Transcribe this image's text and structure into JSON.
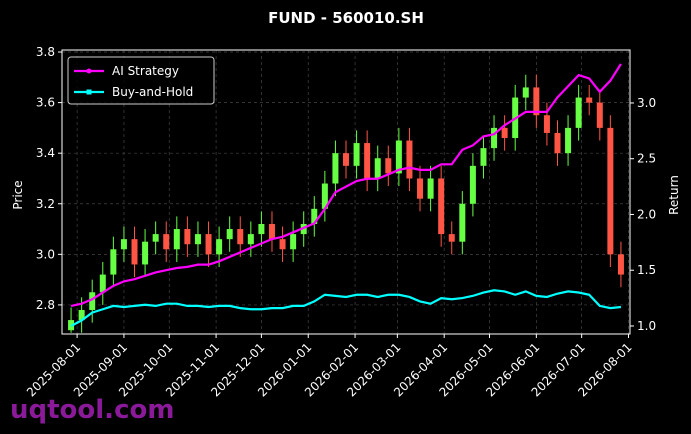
{
  "chart_data": {
    "type": "candlestick",
    "title": "FUND - 560010.SH",
    "y_label": "Price",
    "y2_label": "Return",
    "watermark": "uqtool.com",
    "grid": true,
    "legend": "upper left",
    "up_color": "#66ff44",
    "down_color": "#ff5544",
    "xlim": [
      "2025-07-22",
      "2026-08-02"
    ],
    "xticks": [
      "2025-08-01",
      "2025-09-01",
      "2025-10-01",
      "2025-11-01",
      "2025-12-01",
      "2026-01-01",
      "2026-02-01",
      "2026-03-01",
      "2026-04-01",
      "2026-05-01",
      "2026-06-01",
      "2026-07-01",
      "2026-08-01"
    ],
    "ylim": [
      2.685,
      3.808
    ],
    "yticks": [
      2.8,
      {
        "value": 3.0,
        "label": "3.0"
      },
      3.2,
      3.4,
      3.6,
      3.8
    ],
    "y2lim": [
      0.928,
      3.475
    ],
    "y2ticks": [
      {
        "value": 1.0,
        "label": "1.0"
      },
      1.5,
      {
        "value": 2.0,
        "label": "2.0"
      },
      2.5,
      {
        "value": 3.0,
        "label": "3.0"
      }
    ],
    "x": [
      "2025-07-28",
      "2025-08-04",
      "2025-08-11",
      "2025-08-18",
      "2025-08-25",
      "2025-09-01",
      "2025-09-08",
      "2025-09-15",
      "2025-09-22",
      "2025-09-29",
      "2025-10-06",
      "2025-10-13",
      "2025-10-20",
      "2025-10-27",
      "2025-11-03",
      "2025-11-10",
      "2025-11-17",
      "2025-11-24",
      "2025-12-01",
      "2025-12-08",
      "2025-12-15",
      "2025-12-22",
      "2025-12-29",
      "2026-01-05",
      "2026-01-12",
      "2026-01-19",
      "2026-01-26",
      "2026-02-02",
      "2026-02-09",
      "2026-02-16",
      "2026-02-23",
      "2026-03-02",
      "2026-03-09",
      "2026-03-16",
      "2026-03-23",
      "2026-03-30",
      "2026-04-06",
      "2026-04-13",
      "2026-04-20",
      "2026-04-27",
      "2026-05-04",
      "2026-05-11",
      "2026-05-18",
      "2026-05-25",
      "2026-06-01",
      "2026-06-08",
      "2026-06-15",
      "2026-06-22",
      "2026-06-29",
      "2026-07-06",
      "2026-07-13",
      "2026-07-20",
      "2026-07-27"
    ],
    "open": [
      2.7,
      2.74,
      2.78,
      2.85,
      2.92,
      3.02,
      3.06,
      2.96,
      3.05,
      3.08,
      3.02,
      3.1,
      3.04,
      3.08,
      3.0,
      3.06,
      3.1,
      3.04,
      3.08,
      3.12,
      3.06,
      3.02,
      3.08,
      3.12,
      3.18,
      3.28,
      3.4,
      3.35,
      3.44,
      3.3,
      3.38,
      3.32,
      3.45,
      3.3,
      3.22,
      3.3,
      3.08,
      3.05,
      3.2,
      3.35,
      3.42,
      3.5,
      3.46,
      3.62,
      3.66,
      3.55,
      3.48,
      3.4,
      3.5,
      3.62,
      3.6,
      3.5,
      3.0
    ],
    "high": [
      2.79,
      2.83,
      2.9,
      2.97,
      3.07,
      3.11,
      3.11,
      3.1,
      3.13,
      3.13,
      3.15,
      3.15,
      3.13,
      3.13,
      3.11,
      3.15,
      3.15,
      3.13,
      3.17,
      3.17,
      3.11,
      3.13,
      3.17,
      3.23,
      3.33,
      3.45,
      3.45,
      3.49,
      3.49,
      3.43,
      3.43,
      3.5,
      3.5,
      3.35,
      3.35,
      3.35,
      3.13,
      3.25,
      3.4,
      3.47,
      3.55,
      3.55,
      3.67,
      3.71,
      3.71,
      3.6,
      3.53,
      3.55,
      3.67,
      3.67,
      3.65,
      3.55,
      3.05
    ],
    "low": [
      2.69,
      2.69,
      2.73,
      2.8,
      2.87,
      2.97,
      2.91,
      2.91,
      3.0,
      2.97,
      2.97,
      2.99,
      2.99,
      2.95,
      2.95,
      3.01,
      2.99,
      2.99,
      3.03,
      3.01,
      2.97,
      2.97,
      3.03,
      3.07,
      3.13,
      3.23,
      3.3,
      3.3,
      3.25,
      3.25,
      3.27,
      3.27,
      3.25,
      3.17,
      3.17,
      3.03,
      3.0,
      3.0,
      3.15,
      3.3,
      3.37,
      3.41,
      3.41,
      3.57,
      3.5,
      3.43,
      3.35,
      3.35,
      3.45,
      3.55,
      3.45,
      2.95,
      2.87
    ],
    "close": [
      2.74,
      2.78,
      2.85,
      2.92,
      3.02,
      3.06,
      2.96,
      3.05,
      3.08,
      3.02,
      3.1,
      3.04,
      3.08,
      3.0,
      3.06,
      3.1,
      3.04,
      3.08,
      3.12,
      3.06,
      3.02,
      3.08,
      3.12,
      3.18,
      3.28,
      3.4,
      3.35,
      3.44,
      3.3,
      3.38,
      3.32,
      3.45,
      3.3,
      3.22,
      3.3,
      3.08,
      3.05,
      3.2,
      3.35,
      3.42,
      3.5,
      3.46,
      3.62,
      3.66,
      3.55,
      3.48,
      3.4,
      3.5,
      3.62,
      3.6,
      3.5,
      3.0,
      2.92
    ],
    "series": [
      {
        "name": "AI Strategy",
        "color": "#ff00ff",
        "axis": "y2",
        "values": [
          1.18,
          1.2,
          1.24,
          1.3,
          1.36,
          1.4,
          1.42,
          1.45,
          1.48,
          1.5,
          1.52,
          1.53,
          1.55,
          1.55,
          1.58,
          1.62,
          1.66,
          1.7,
          1.74,
          1.78,
          1.8,
          1.84,
          1.88,
          1.92,
          2.05,
          2.2,
          2.25,
          2.3,
          2.32,
          2.32,
          2.36,
          2.4,
          2.42,
          2.4,
          2.4,
          2.45,
          2.45,
          2.58,
          2.62,
          2.7,
          2.72,
          2.8,
          2.86,
          2.92,
          2.92,
          2.92,
          3.05,
          3.15,
          3.25,
          3.22,
          3.1,
          3.2,
          3.35
        ]
      },
      {
        "name": "Buy-and-Hold",
        "color": "#00ffff",
        "axis": "y2",
        "values": [
          1.0,
          1.05,
          1.12,
          1.15,
          1.18,
          1.17,
          1.18,
          1.19,
          1.18,
          1.2,
          1.2,
          1.18,
          1.18,
          1.17,
          1.18,
          1.18,
          1.16,
          1.15,
          1.15,
          1.16,
          1.16,
          1.18,
          1.18,
          1.22,
          1.28,
          1.27,
          1.26,
          1.28,
          1.28,
          1.26,
          1.28,
          1.28,
          1.26,
          1.22,
          1.2,
          1.25,
          1.24,
          1.25,
          1.27,
          1.3,
          1.32,
          1.31,
          1.28,
          1.31,
          1.27,
          1.26,
          1.29,
          1.31,
          1.3,
          1.28,
          1.18,
          1.16,
          1.17
        ]
      }
    ]
  }
}
